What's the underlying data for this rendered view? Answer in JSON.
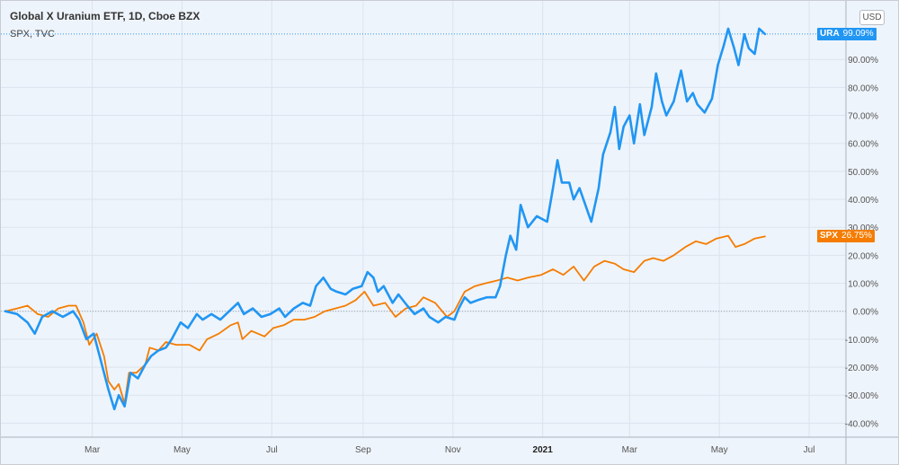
{
  "header": {
    "title": "Global X Uranium ETF, 1D, Cboe BZX",
    "subtitle": "SPX, TVC",
    "currency": "USD"
  },
  "colors": {
    "background": "#eef4fb",
    "grid": "#dbe3ee",
    "ura": "#2196f3",
    "spx": "#f57c00",
    "axis_text": "#555555"
  },
  "tags": {
    "ura": {
      "name": "URA",
      "value": "99.09%"
    },
    "spx": {
      "name": "SPX",
      "value": "26.75%"
    }
  },
  "chart_data": {
    "type": "line",
    "title": "Global X Uranium ETF, 1D, Cboe BZX",
    "x_unit": "date",
    "x_ticks": [
      {
        "label": "Mar",
        "date": "2020-03-01"
      },
      {
        "label": "May",
        "date": "2020-05-01"
      },
      {
        "label": "Jul",
        "date": "2020-07-01"
      },
      {
        "label": "Sep",
        "date": "2020-09-01"
      },
      {
        "label": "Nov",
        "date": "2020-11-01"
      },
      {
        "label": "2021",
        "date": "2021-01-01"
      },
      {
        "label": "Mar",
        "date": "2021-03-01"
      },
      {
        "label": "May",
        "date": "2021-05-01"
      },
      {
        "label": "Jul",
        "date": "2021-07-01"
      }
    ],
    "xlim": [
      "2020-01-02",
      "2021-07-26"
    ],
    "ylim": [
      -45,
      109
    ],
    "y_ticks": [
      -40,
      -30,
      -20,
      -10,
      0,
      10,
      20,
      30,
      40,
      50,
      60,
      70,
      80,
      90
    ],
    "y_tick_labels": [
      "-40.00%",
      "-30.00%",
      "-20.00%",
      "-10.00%",
      "0.00%",
      "10.00%",
      "20.00%",
      "30.00%",
      "40.00%",
      "50.00%",
      "60.00%",
      "70.00%",
      "80.00%",
      "90.00%"
    ],
    "baseline": 0,
    "grid": true,
    "series": [
      {
        "name": "URA",
        "last_value": 99.09,
        "points": [
          [
            "2020-01-02",
            0
          ],
          [
            "2020-01-10",
            -1
          ],
          [
            "2020-01-17",
            -4
          ],
          [
            "2020-01-22",
            -8
          ],
          [
            "2020-01-27",
            -2
          ],
          [
            "2020-02-03",
            0
          ],
          [
            "2020-02-10",
            -2
          ],
          [
            "2020-02-17",
            0
          ],
          [
            "2020-02-21",
            -3
          ],
          [
            "2020-02-26",
            -10
          ],
          [
            "2020-03-02",
            -8
          ],
          [
            "2020-03-06",
            -16
          ],
          [
            "2020-03-09",
            -22
          ],
          [
            "2020-03-12",
            -28
          ],
          [
            "2020-03-16",
            -35
          ],
          [
            "2020-03-19",
            -30
          ],
          [
            "2020-03-23",
            -34
          ],
          [
            "2020-03-27",
            -22
          ],
          [
            "2020-04-01",
            -24
          ],
          [
            "2020-04-06",
            -19
          ],
          [
            "2020-04-10",
            -16
          ],
          [
            "2020-04-15",
            -14
          ],
          [
            "2020-04-20",
            -13
          ],
          [
            "2020-04-24",
            -10
          ],
          [
            "2020-04-30",
            -4
          ],
          [
            "2020-05-05",
            -6
          ],
          [
            "2020-05-11",
            -1
          ],
          [
            "2020-05-15",
            -3
          ],
          [
            "2020-05-21",
            -1
          ],
          [
            "2020-05-27",
            -3
          ],
          [
            "2020-06-02",
            0
          ],
          [
            "2020-06-08",
            3
          ],
          [
            "2020-06-12",
            -1
          ],
          [
            "2020-06-18",
            1
          ],
          [
            "2020-06-24",
            -2
          ],
          [
            "2020-06-30",
            -1
          ],
          [
            "2020-07-06",
            1
          ],
          [
            "2020-07-10",
            -2
          ],
          [
            "2020-07-16",
            1
          ],
          [
            "2020-07-22",
            3
          ],
          [
            "2020-07-27",
            2
          ],
          [
            "2020-07-31",
            9
          ],
          [
            "2020-08-05",
            12
          ],
          [
            "2020-08-10",
            8
          ],
          [
            "2020-08-14",
            7
          ],
          [
            "2020-08-20",
            6
          ],
          [
            "2020-08-25",
            8
          ],
          [
            "2020-08-31",
            9
          ],
          [
            "2020-09-04",
            14
          ],
          [
            "2020-09-08",
            12
          ],
          [
            "2020-09-11",
            7
          ],
          [
            "2020-09-15",
            9
          ],
          [
            "2020-09-21",
            3
          ],
          [
            "2020-09-25",
            6
          ],
          [
            "2020-10-01",
            2
          ],
          [
            "2020-10-06",
            -1
          ],
          [
            "2020-10-12",
            1
          ],
          [
            "2020-10-16",
            -2
          ],
          [
            "2020-10-22",
            -4
          ],
          [
            "2020-10-27",
            -2
          ],
          [
            "2020-11-02",
            -3
          ],
          [
            "2020-11-05",
            1
          ],
          [
            "2020-11-09",
            5
          ],
          [
            "2020-11-13",
            3
          ],
          [
            "2020-11-18",
            4
          ],
          [
            "2020-11-24",
            5
          ],
          [
            "2020-11-30",
            5
          ],
          [
            "2020-12-03",
            9
          ],
          [
            "2020-12-07",
            20
          ],
          [
            "2020-12-10",
            27
          ],
          [
            "2020-12-14",
            22
          ],
          [
            "2020-12-17",
            38
          ],
          [
            "2020-12-22",
            30
          ],
          [
            "2020-12-28",
            34
          ],
          [
            "2021-01-04",
            32
          ],
          [
            "2021-01-08",
            44
          ],
          [
            "2021-01-11",
            54
          ],
          [
            "2021-01-14",
            46
          ],
          [
            "2021-01-19",
            46
          ],
          [
            "2021-01-22",
            40
          ],
          [
            "2021-01-26",
            44
          ],
          [
            "2021-02-01",
            35
          ],
          [
            "2021-02-03",
            32
          ],
          [
            "2021-02-08",
            44
          ],
          [
            "2021-02-11",
            56
          ],
          [
            "2021-02-16",
            64
          ],
          [
            "2021-02-19",
            73
          ],
          [
            "2021-02-22",
            58
          ],
          [
            "2021-02-25",
            66
          ],
          [
            "2021-03-01",
            70
          ],
          [
            "2021-03-04",
            60
          ],
          [
            "2021-03-08",
            74
          ],
          [
            "2021-03-11",
            63
          ],
          [
            "2021-03-16",
            73
          ],
          [
            "2021-03-19",
            85
          ],
          [
            "2021-03-23",
            75
          ],
          [
            "2021-03-26",
            70
          ],
          [
            "2021-03-31",
            75
          ],
          [
            "2021-04-05",
            86
          ],
          [
            "2021-04-09",
            75
          ],
          [
            "2021-04-13",
            78
          ],
          [
            "2021-04-16",
            74
          ],
          [
            "2021-04-21",
            71
          ],
          [
            "2021-04-26",
            76
          ],
          [
            "2021-04-30",
            88
          ],
          [
            "2021-05-04",
            95
          ],
          [
            "2021-05-07",
            101
          ],
          [
            "2021-05-11",
            94
          ],
          [
            "2021-05-14",
            88
          ],
          [
            "2021-05-18",
            99
          ],
          [
            "2021-05-21",
            94
          ],
          [
            "2021-05-25",
            92
          ],
          [
            "2021-05-28",
            101
          ],
          [
            "2021-06-01",
            99.09
          ]
        ]
      },
      {
        "name": "SPX",
        "last_value": 26.75,
        "points": [
          [
            "2020-01-02",
            0
          ],
          [
            "2020-01-10",
            1
          ],
          [
            "2020-01-17",
            2
          ],
          [
            "2020-01-24",
            -1
          ],
          [
            "2020-01-31",
            -2
          ],
          [
            "2020-02-07",
            1
          ],
          [
            "2020-02-14",
            2
          ],
          [
            "2020-02-19",
            2
          ],
          [
            "2020-02-24",
            -4
          ],
          [
            "2020-02-28",
            -12
          ],
          [
            "2020-03-04",
            -8
          ],
          [
            "2020-03-09",
            -16
          ],
          [
            "2020-03-12",
            -25
          ],
          [
            "2020-03-16",
            -28
          ],
          [
            "2020-03-19",
            -26
          ],
          [
            "2020-03-23",
            -33
          ],
          [
            "2020-03-26",
            -22
          ],
          [
            "2020-03-31",
            -22
          ],
          [
            "2020-04-06",
            -19
          ],
          [
            "2020-04-09",
            -13
          ],
          [
            "2020-04-15",
            -14
          ],
          [
            "2020-04-20",
            -11
          ],
          [
            "2020-04-27",
            -12
          ],
          [
            "2020-04-30",
            -12
          ],
          [
            "2020-05-06",
            -12
          ],
          [
            "2020-05-13",
            -14
          ],
          [
            "2020-05-18",
            -10
          ],
          [
            "2020-05-26",
            -8
          ],
          [
            "2020-06-03",
            -5
          ],
          [
            "2020-06-08",
            -4
          ],
          [
            "2020-06-11",
            -10
          ],
          [
            "2020-06-17",
            -7
          ],
          [
            "2020-06-26",
            -9
          ],
          [
            "2020-07-02",
            -6
          ],
          [
            "2020-07-09",
            -5
          ],
          [
            "2020-07-16",
            -3
          ],
          [
            "2020-07-23",
            -3
          ],
          [
            "2020-07-30",
            -2
          ],
          [
            "2020-08-06",
            0
          ],
          [
            "2020-08-13",
            1
          ],
          [
            "2020-08-20",
            2
          ],
          [
            "2020-08-27",
            4
          ],
          [
            "2020-09-02",
            7
          ],
          [
            "2020-09-08",
            2
          ],
          [
            "2020-09-16",
            3
          ],
          [
            "2020-09-23",
            -2
          ],
          [
            "2020-09-30",
            1
          ],
          [
            "2020-10-07",
            2
          ],
          [
            "2020-10-12",
            5
          ],
          [
            "2020-10-20",
            3
          ],
          [
            "2020-10-28",
            -2
          ],
          [
            "2020-11-02",
            0
          ],
          [
            "2020-11-09",
            7
          ],
          [
            "2020-11-16",
            9
          ],
          [
            "2020-11-23",
            10
          ],
          [
            "2020-12-01",
            11
          ],
          [
            "2020-12-08",
            12
          ],
          [
            "2020-12-15",
            11
          ],
          [
            "2020-12-22",
            12
          ],
          [
            "2020-12-31",
            13
          ],
          [
            "2021-01-08",
            15
          ],
          [
            "2021-01-15",
            13
          ],
          [
            "2021-01-22",
            16
          ],
          [
            "2021-01-29",
            11
          ],
          [
            "2021-02-05",
            16
          ],
          [
            "2021-02-12",
            18
          ],
          [
            "2021-02-19",
            17
          ],
          [
            "2021-02-25",
            15
          ],
          [
            "2021-03-04",
            14
          ],
          [
            "2021-03-11",
            18
          ],
          [
            "2021-03-17",
            19
          ],
          [
            "2021-03-24",
            18
          ],
          [
            "2021-03-31",
            20
          ],
          [
            "2021-04-08",
            23
          ],
          [
            "2021-04-15",
            25
          ],
          [
            "2021-04-22",
            24
          ],
          [
            "2021-04-29",
            26
          ],
          [
            "2021-05-07",
            27
          ],
          [
            "2021-05-12",
            23
          ],
          [
            "2021-05-18",
            24
          ],
          [
            "2021-05-25",
            26
          ],
          [
            "2021-06-01",
            26.75
          ]
        ]
      }
    ]
  }
}
